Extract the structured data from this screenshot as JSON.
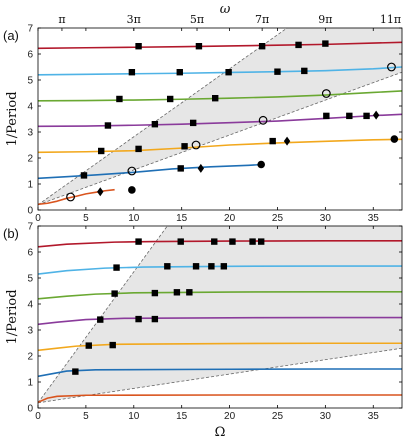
{
  "figure": {
    "top_axis_label": "ω",
    "top_ticks": [
      {
        "x": 2.5,
        "label": "π"
      },
      {
        "x": 10.0,
        "label": "3π"
      },
      {
        "x": 16.6,
        "label": "5π"
      },
      {
        "x": 23.4,
        "label": "7π"
      },
      {
        "x": 30.0,
        "label": "9π"
      },
      {
        "x": 36.8,
        "label": "11π"
      }
    ]
  },
  "colors": {
    "darkred": "#b2182b",
    "skyblue": "#4fb3e6",
    "green": "#6aa832",
    "purple": "#8a3b9b",
    "orange": "#f2a81d",
    "blue": "#1f6fb5",
    "redorange": "#d9541e",
    "shade": "#e6e6e6"
  },
  "chart_data": [
    {
      "type": "line",
      "panel_label": "(a)",
      "ylabel": "1/Period",
      "xlim": [
        0,
        38
      ],
      "ylim": [
        0,
        7
      ],
      "xticks": [
        0,
        5,
        10,
        15,
        20,
        25,
        30,
        35
      ],
      "yticks": [
        0,
        1,
        2,
        3,
        4,
        5,
        6,
        7
      ],
      "shaded_region": {
        "upper_boundary": [
          [
            0,
            0.2
          ],
          [
            26,
            7
          ]
        ],
        "lower_boundary": [
          [
            0,
            0.2
          ],
          [
            38,
            5.3
          ]
        ]
      },
      "series": [
        {
          "color": "darkred",
          "x": [
            0,
            5,
            10,
            15,
            20,
            25,
            30,
            35,
            38
          ],
          "y": [
            6.22,
            6.24,
            6.26,
            6.28,
            6.31,
            6.34,
            6.37,
            6.42,
            6.45
          ]
        },
        {
          "color": "skyblue",
          "x": [
            0,
            5,
            10,
            15,
            20,
            25,
            30,
            35,
            38
          ],
          "y": [
            5.2,
            5.22,
            5.24,
            5.26,
            5.29,
            5.32,
            5.36,
            5.43,
            5.5
          ]
        },
        {
          "color": "green",
          "x": [
            0,
            5,
            10,
            15,
            20,
            25,
            30,
            35,
            38
          ],
          "y": [
            4.2,
            4.21,
            4.23,
            4.26,
            4.3,
            4.35,
            4.42,
            4.52,
            4.58
          ]
        },
        {
          "color": "purple",
          "x": [
            0,
            5,
            10,
            15,
            20,
            25,
            30,
            35,
            38
          ],
          "y": [
            3.22,
            3.23,
            3.26,
            3.3,
            3.36,
            3.42,
            3.52,
            3.63,
            3.68
          ]
        },
        {
          "color": "orange",
          "x": [
            0,
            5,
            10,
            15,
            20,
            25,
            30,
            35,
            38
          ],
          "y": [
            2.22,
            2.24,
            2.28,
            2.38,
            2.5,
            2.58,
            2.64,
            2.7,
            2.72
          ]
        },
        {
          "color": "blue",
          "x": [
            0,
            3,
            6,
            10,
            14,
            18,
            22,
            23
          ],
          "y": [
            1.22,
            1.28,
            1.35,
            1.45,
            1.58,
            1.66,
            1.72,
            1.74
          ]
        },
        {
          "color": "redorange",
          "x": [
            0,
            1,
            2,
            3,
            4,
            5,
            6,
            7,
            8
          ],
          "y": [
            0.22,
            0.26,
            0.34,
            0.45,
            0.53,
            0.62,
            0.68,
            0.74,
            0.78
          ]
        }
      ],
      "markers": {
        "filled_squares": [
          [
            10.5,
            6.3
          ],
          [
            16.8,
            6.3
          ],
          [
            23.4,
            6.3
          ],
          [
            27.2,
            6.35
          ],
          [
            30,
            6.4
          ],
          [
            9.8,
            5.3
          ],
          [
            14.8,
            5.3
          ],
          [
            19.9,
            5.3
          ],
          [
            25,
            5.32
          ],
          [
            27.8,
            5.35
          ],
          [
            8.5,
            4.27
          ],
          [
            13.8,
            4.27
          ],
          [
            18.5,
            4.3
          ],
          [
            7.3,
            3.25
          ],
          [
            12.2,
            3.3
          ],
          [
            16.2,
            3.35
          ],
          [
            30.1,
            3.62
          ],
          [
            32.5,
            3.62
          ],
          [
            34.3,
            3.62
          ],
          [
            6.6,
            2.27
          ],
          [
            10.5,
            2.35
          ],
          [
            15.3,
            2.45
          ],
          [
            24.5,
            2.65
          ],
          [
            4.8,
            1.33
          ],
          [
            14.9,
            1.6
          ]
        ],
        "open_circles": [
          [
            3.4,
            0.5
          ],
          [
            9.8,
            1.5
          ],
          [
            16.5,
            2.5
          ],
          [
            23.5,
            3.45
          ],
          [
            30.1,
            4.48
          ],
          [
            36.9,
            5.5
          ]
        ],
        "filled_circles": [
          [
            9.8,
            0.77
          ],
          [
            23.3,
            1.75
          ],
          [
            37.2,
            2.73
          ]
        ],
        "diamonds": [
          [
            6.5,
            0.7
          ],
          [
            17,
            1.6
          ],
          [
            26,
            2.65
          ],
          [
            35.3,
            3.65
          ]
        ]
      }
    },
    {
      "type": "line",
      "panel_label": "(b)",
      "ylabel": "1/Period",
      "xlabel": "Ω",
      "xlim": [
        0,
        38
      ],
      "ylim": [
        0,
        7
      ],
      "xticks": [
        0,
        5,
        10,
        15,
        20,
        25,
        30,
        35
      ],
      "yticks": [
        0,
        1,
        2,
        3,
        4,
        5,
        6,
        7
      ],
      "shaded_region": {
        "upper_boundary": [
          [
            0,
            0.2
          ],
          [
            13.5,
            7
          ]
        ],
        "lower_boundary": [
          [
            0,
            0.2
          ],
          [
            38,
            2.3
          ]
        ]
      },
      "series": [
        {
          "color": "darkred",
          "x": [
            0,
            3,
            8,
            12,
            20,
            30,
            38
          ],
          "y": [
            6.2,
            6.3,
            6.38,
            6.4,
            6.42,
            6.43,
            6.43
          ]
        },
        {
          "color": "skyblue",
          "x": [
            0,
            3,
            7,
            11,
            20,
            30,
            38
          ],
          "y": [
            5.15,
            5.28,
            5.38,
            5.42,
            5.45,
            5.46,
            5.46
          ]
        },
        {
          "color": "green",
          "x": [
            0,
            3,
            6,
            10,
            20,
            30,
            38
          ],
          "y": [
            4.2,
            4.3,
            4.38,
            4.43,
            4.46,
            4.47,
            4.47
          ]
        },
        {
          "color": "purple",
          "x": [
            0,
            2,
            5,
            9,
            20,
            30,
            38
          ],
          "y": [
            3.22,
            3.3,
            3.4,
            3.45,
            3.47,
            3.48,
            3.48
          ]
        },
        {
          "color": "orange",
          "x": [
            0,
            2,
            4,
            8,
            20,
            30,
            38
          ],
          "y": [
            2.22,
            2.3,
            2.38,
            2.45,
            2.48,
            2.49,
            2.49
          ]
        },
        {
          "color": "blue",
          "x": [
            0,
            1.5,
            3,
            6,
            20,
            30,
            38
          ],
          "y": [
            1.22,
            1.32,
            1.42,
            1.47,
            1.49,
            1.5,
            1.5
          ]
        },
        {
          "color": "redorange",
          "x": [
            0,
            0.5,
            1,
            2,
            5,
            20,
            38
          ],
          "y": [
            0.22,
            0.3,
            0.38,
            0.45,
            0.49,
            0.5,
            0.5
          ]
        }
      ],
      "markers": {
        "filled_squares": [
          [
            10.5,
            6.4
          ],
          [
            14.9,
            6.4
          ],
          [
            18.4,
            6.4
          ],
          [
            20.3,
            6.4
          ],
          [
            22.4,
            6.4
          ],
          [
            23.3,
            6.4
          ],
          [
            8.2,
            5.4
          ],
          [
            13.5,
            5.45
          ],
          [
            16.5,
            5.45
          ],
          [
            18.1,
            5.45
          ],
          [
            19.4,
            5.45
          ],
          [
            8,
            4.4
          ],
          [
            12.2,
            4.42
          ],
          [
            14.5,
            4.45
          ],
          [
            15.8,
            4.45
          ],
          [
            6.5,
            3.4
          ],
          [
            10.5,
            3.42
          ],
          [
            12.2,
            3.42
          ],
          [
            5.3,
            2.4
          ],
          [
            7.8,
            2.42
          ],
          [
            3.9,
            1.4
          ]
        ],
        "open_circles": [],
        "filled_circles": [],
        "diamonds": []
      }
    }
  ]
}
